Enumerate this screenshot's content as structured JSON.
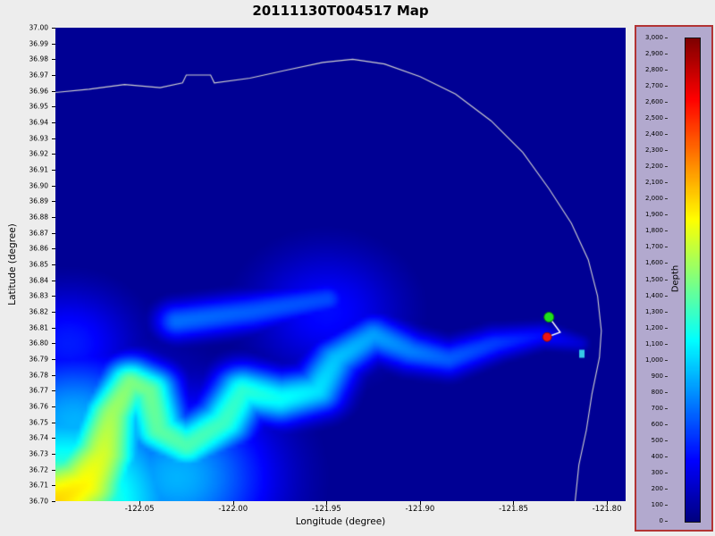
{
  "title": "20111130T004517 Map",
  "axes": {
    "xlabel": "Longitude (degree)",
    "ylabel": "Latitude (degree)",
    "x_ticks": [
      "-122.05",
      "-122.00",
      "-121.95",
      "-121.90",
      "-121.85",
      "-121.80"
    ],
    "y_ticks": [
      "37.00",
      "36.99",
      "36.98",
      "36.97",
      "36.96",
      "36.95",
      "36.94",
      "36.93",
      "36.92",
      "36.91",
      "36.90",
      "36.89",
      "36.88",
      "36.87",
      "36.86",
      "36.85",
      "36.84",
      "36.83",
      "36.82",
      "36.81",
      "36.80",
      "36.79",
      "36.78",
      "36.77",
      "36.76",
      "36.75",
      "36.74",
      "36.73",
      "36.72",
      "36.71",
      "36.70"
    ]
  },
  "colorbar": {
    "label": "Depth",
    "min": 0,
    "max": 3000,
    "colormap": "jet",
    "ticks": [
      "3,000",
      "2,900",
      "2,800",
      "2,700",
      "2,600",
      "2,500",
      "2,400",
      "2,300",
      "2,200",
      "2,100",
      "2,000",
      "1,900",
      "1,800",
      "1,700",
      "1,600",
      "1,500",
      "1,400",
      "1,300",
      "1,200",
      "1,100",
      "1,000",
      "900",
      "800",
      "700",
      "600",
      "500",
      "400",
      "300",
      "200",
      "100",
      "0"
    ]
  },
  "chart_data": {
    "type": "heatmap",
    "title": "20111130T004517 Map",
    "xlabel": "Longitude (degree)",
    "ylabel": "Latitude (degree)",
    "xlim": [
      -122.095,
      -121.79
    ],
    "ylim": [
      36.7,
      37.0
    ],
    "colorbar": {
      "label": "Depth",
      "range": [
        0,
        3000
      ],
      "colormap": "jet"
    },
    "base_depth": 60,
    "bathymetry_features": [
      {
        "name": "monterey-canyon-axis",
        "points": [
          [
            -121.815,
            36.8,
            250,
            0.006
          ],
          [
            -121.835,
            36.805,
            400,
            0.008
          ],
          [
            -121.86,
            36.8,
            550,
            0.01
          ],
          [
            -121.885,
            36.79,
            650,
            0.011
          ],
          [
            -121.905,
            36.795,
            750,
            0.012
          ],
          [
            -121.925,
            36.805,
            850,
            0.013
          ],
          [
            -121.945,
            36.79,
            950,
            0.014
          ],
          [
            -121.955,
            36.77,
            1050,
            0.015
          ],
          [
            -121.975,
            36.765,
            1150,
            0.016
          ],
          [
            -121.995,
            36.77,
            1250,
            0.016
          ],
          [
            -122.005,
            36.75,
            1300,
            0.017
          ],
          [
            -122.025,
            36.735,
            1350,
            0.017
          ],
          [
            -122.04,
            36.745,
            1400,
            0.017
          ],
          [
            -122.045,
            36.77,
            1450,
            0.016
          ],
          [
            -122.055,
            36.775,
            1500,
            0.016
          ],
          [
            -122.065,
            36.755,
            1600,
            0.018
          ],
          [
            -122.07,
            36.73,
            1750,
            0.022
          ],
          [
            -122.08,
            36.71,
            1900,
            0.028
          ],
          [
            -122.095,
            36.7,
            2000,
            0.034
          ]
        ]
      },
      {
        "name": "north-branch-channel",
        "points": [
          [
            -122.03,
            36.814,
            700,
            0.012
          ],
          [
            -121.99,
            36.82,
            650,
            0.012
          ],
          [
            -121.95,
            36.828,
            600,
            0.011
          ]
        ]
      },
      {
        "name": "deep-basin",
        "points": [
          [
            -122.095,
            36.695,
            1950,
            0.045
          ]
        ]
      },
      {
        "name": "basin-halo",
        "points": [
          [
            -122.09,
            36.7,
            1400,
            0.07
          ]
        ]
      },
      {
        "name": "slope-fan-west",
        "points": [
          [
            -122.085,
            36.75,
            900,
            0.045
          ]
        ]
      },
      {
        "name": "slope-fan-mid",
        "points": [
          [
            -122.03,
            36.715,
            900,
            0.05
          ]
        ]
      },
      {
        "name": "west-shelf-patch",
        "points": [
          [
            -122.088,
            36.8,
            450,
            0.035
          ]
        ]
      },
      {
        "name": "shelf-edge-patch",
        "points": [
          [
            -121.95,
            36.82,
            400,
            0.04
          ]
        ]
      }
    ],
    "coastline": {
      "color": "#d0d0d0",
      "points": [
        [
          -122.095,
          36.959
        ],
        [
          -122.077,
          36.961
        ],
        [
          -122.058,
          36.964
        ],
        [
          -122.039,
          36.962
        ],
        [
          -122.027,
          36.965
        ],
        [
          -122.025,
          36.97
        ],
        [
          -122.012,
          36.97
        ],
        [
          -122.01,
          36.965
        ],
        [
          -121.991,
          36.968
        ],
        [
          -121.972,
          36.973
        ],
        [
          -121.952,
          36.978
        ],
        [
          -121.936,
          36.98
        ],
        [
          -121.919,
          36.977
        ],
        [
          -121.9,
          36.969
        ],
        [
          -121.881,
          36.958
        ],
        [
          -121.862,
          36.941
        ],
        [
          -121.845,
          36.921
        ],
        [
          -121.831,
          36.898
        ],
        [
          -121.819,
          36.876
        ],
        [
          -121.81,
          36.853
        ],
        [
          -121.805,
          36.83
        ],
        [
          -121.803,
          36.808
        ],
        [
          -121.804,
          36.791
        ],
        [
          -121.808,
          36.768
        ],
        [
          -121.811,
          36.745
        ],
        [
          -121.815,
          36.723
        ],
        [
          -121.817,
          36.7
        ]
      ]
    },
    "track": {
      "color": "#ffffff",
      "points": [
        [
          -121.831,
          36.8166
        ],
        [
          -121.825,
          36.807
        ],
        [
          -121.832,
          36.804
        ]
      ]
    },
    "markers": [
      {
        "name": "green-circle-marker",
        "shape": "circle",
        "color": "#1ee01e",
        "edge": "#0c7a0c",
        "lon": -121.831,
        "lat": 36.8166,
        "r": 5.5
      },
      {
        "name": "red-circle-marker",
        "shape": "circle",
        "color": "#ee1414",
        "edge": "#8a0a0a",
        "lon": -121.832,
        "lat": 36.804,
        "r": 5
      },
      {
        "name": "cyan-square-marker",
        "shape": "rect",
        "color": "#35c8e8",
        "lon": -121.8134,
        "lat": 36.7934,
        "w": 6,
        "h": 9
      }
    ]
  }
}
